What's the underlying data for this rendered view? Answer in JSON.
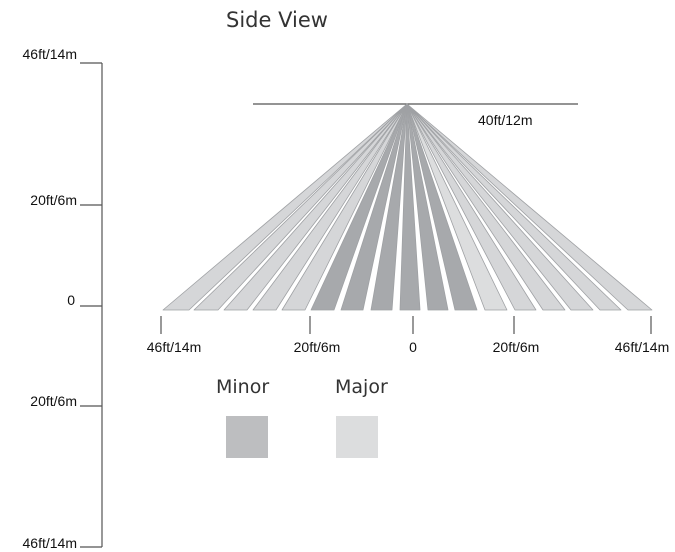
{
  "title": "Side View",
  "vertical_axis": {
    "labels": [
      "46ft/14m",
      "20ft/6m",
      "0",
      "20ft/6m",
      "46ft/14m"
    ]
  },
  "horizontal_axis": {
    "labels": [
      "46ft/14m",
      "20ft/6m",
      "0",
      "20ft/6m",
      "46ft/14m"
    ]
  },
  "mount_height_label": "40ft/12m",
  "legend": {
    "items": [
      {
        "label": "Minor",
        "color": "#bdbec0"
      },
      {
        "label": "Major",
        "color": "#dcddde"
      }
    ]
  },
  "colors": {
    "axis": "#555555",
    "zone_light": "#d5d6d8",
    "zone_dark": "#a7a9ac",
    "zone_major": "#dcddde",
    "zone_outline": "#9fa1a4"
  }
}
